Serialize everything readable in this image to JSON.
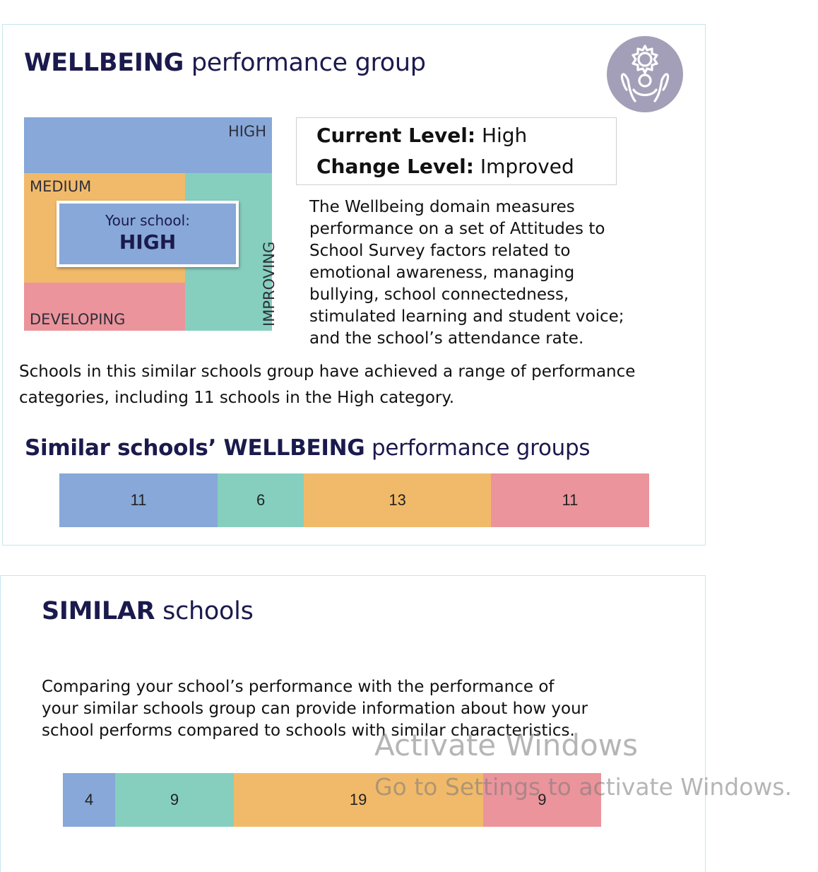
{
  "colors": {
    "high": "#87a8d8",
    "improving": "#86cfbf",
    "medium": "#f1ba6a",
    "developing": "#eb949c",
    "title": "#1b1a4d",
    "panel_border": "#c6e6ec"
  },
  "wellbeing": {
    "title_bold": "WELLBEING",
    "title_rest": "performance group",
    "badge_icon": "wellbeing-person-gear-icon",
    "matrix": {
      "high": "HIGH",
      "medium": "MEDIUM",
      "developing": "DEVELOPING",
      "improving": "IMPROVING",
      "your_school_caption": "Your school:",
      "your_school_value": "HIGH"
    },
    "levels": {
      "current_key": "Current Level:",
      "current_value": "High",
      "change_key": "Change Level:",
      "change_value": "Improved"
    },
    "description_lines": [
      "The Wellbeing domain measures",
      "performance on a set of Attitudes to",
      "School Survey factors related to",
      "emotional awareness, managing",
      "bullying, school connectedness,",
      "stimulated learning and student voice;",
      "and the school’s attendance rate."
    ],
    "summary_lines": [
      "Schools in this similar schools group have achieved a range of performance",
      "categories, including 11 schools in the High category."
    ],
    "groups_title_bold": "Similar schools’ WELLBEING",
    "groups_title_rest": "performance groups",
    "bar": {
      "labels": [
        "11",
        "6",
        "13",
        "11"
      ],
      "values": [
        11,
        6,
        13,
        11
      ],
      "categories": [
        "High",
        "Improving",
        "Medium",
        "Developing"
      ]
    }
  },
  "similar": {
    "title_bold": "SIMILAR",
    "title_rest": "schools",
    "description_lines": [
      "Comparing your school’s performance with the performance of",
      "your similar schools group can provide information about how your",
      "school performs compared to schools with similar characteristics."
    ],
    "bar": {
      "labels": [
        "4",
        "9",
        "19",
        "9"
      ],
      "values": [
        4,
        9,
        19,
        9
      ],
      "categories": [
        "High",
        "Improving",
        "Medium",
        "Developing"
      ]
    }
  },
  "watermark": {
    "line1": "Activate Windows",
    "line2": "Go to Settings to activate Windows."
  }
}
